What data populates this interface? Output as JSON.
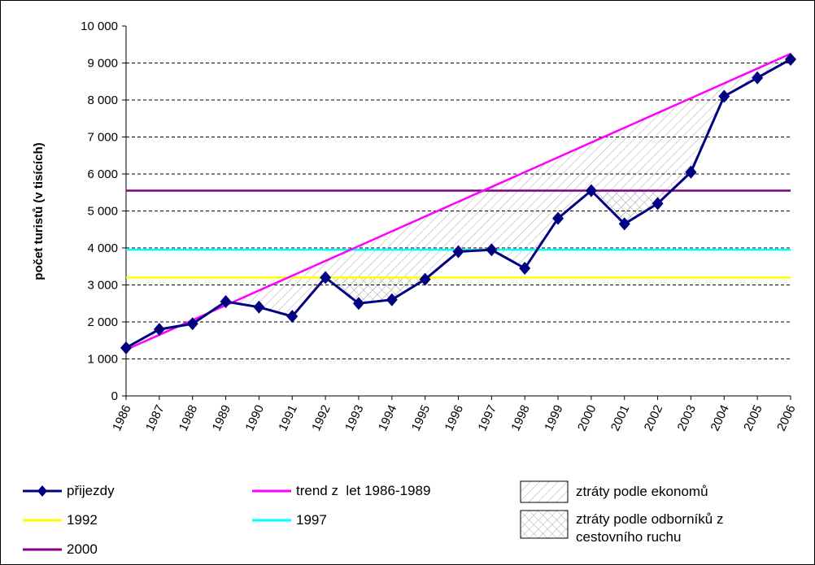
{
  "chart_data": {
    "type": "line",
    "y_label": "počet turistů (v tisících)",
    "x": [
      "1986",
      "1987",
      "1988",
      "1989",
      "1990",
      "1991",
      "1992",
      "1993",
      "1994",
      "1995",
      "1996",
      "1997",
      "1998",
      "1999",
      "2000",
      "2001",
      "2002",
      "2003",
      "2004",
      "2005",
      "2006"
    ],
    "ylim": [
      0,
      10000
    ],
    "yticks": [
      {
        "value": 0,
        "label": "0"
      },
      {
        "value": 1000,
        "label": "1 000"
      },
      {
        "value": 2000,
        "label": "2 000"
      },
      {
        "value": 3000,
        "label": "3 000"
      },
      {
        "value": 4000,
        "label": "4 000"
      },
      {
        "value": 5000,
        "label": "5 000"
      },
      {
        "value": 6000,
        "label": "6 000"
      },
      {
        "value": 7000,
        "label": "7 000"
      },
      {
        "value": 8000,
        "label": "8 000"
      },
      {
        "value": 9000,
        "label": "9 000"
      },
      {
        "value": 10000,
        "label": "10 000"
      }
    ],
    "grid": true,
    "series": [
      {
        "name": "přijezdy",
        "color": "#000080",
        "values": [
          1300,
          1800,
          1950,
          2550,
          2400,
          2150,
          3200,
          2500,
          2600,
          3150,
          3900,
          3950,
          3450,
          4800,
          5550,
          4650,
          5200,
          6050,
          8100,
          8600,
          9100
        ]
      },
      {
        "name": "trend z  let 1986-1989",
        "color": "#ff00ff",
        "values": [
          1250,
          1650,
          2050,
          2450,
          2850,
          3250,
          3650,
          4050,
          4450,
          4850,
          5250,
          5650,
          6050,
          6450,
          6850,
          7250,
          7650,
          8050,
          8450,
          8850,
          9250
        ]
      },
      {
        "name": "1992",
        "color": "#ffff00",
        "values": [
          3200,
          3200,
          3200,
          3200,
          3200,
          3200,
          3200,
          3200,
          3200,
          3200,
          3200,
          3200,
          3200,
          3200,
          3200,
          3200,
          3200,
          3200,
          3200,
          3200,
          3200
        ]
      },
      {
        "name": "1997",
        "color": "#00ffff",
        "values": [
          3950,
          3950,
          3950,
          3950,
          3950,
          3950,
          3950,
          3950,
          3950,
          3950,
          3950,
          3950,
          3950,
          3950,
          3950,
          3950,
          3950,
          3950,
          3950,
          3950,
          3950
        ]
      },
      {
        "name": "2000",
        "color": "#800080",
        "values": [
          5550,
          5550,
          5550,
          5550,
          5550,
          5550,
          5550,
          5550,
          5550,
          5550,
          5550,
          5550,
          5550,
          5550,
          5550,
          5550,
          5550,
          5550,
          5550,
          5550,
          5550
        ]
      }
    ],
    "areas": [
      {
        "name": "ztráty podle ekonomů"
      },
      {
        "name": "ztráty podle odborníků z cestovního ruchu"
      }
    ]
  }
}
